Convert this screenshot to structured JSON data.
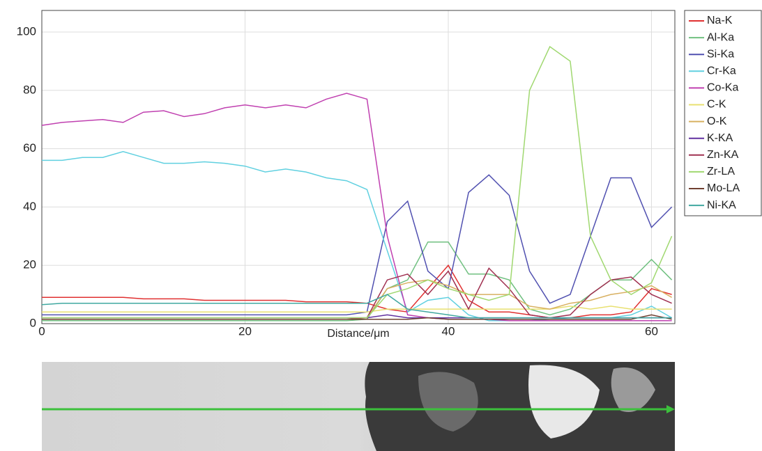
{
  "chart_data": {
    "type": "line",
    "x_label": "Distance/μm",
    "x": [
      0,
      2,
      4,
      6,
      8,
      10,
      12,
      14,
      16,
      18,
      20,
      22,
      24,
      26,
      28,
      30,
      32,
      34,
      36,
      38,
      40,
      42,
      44,
      46,
      48,
      50,
      52,
      54,
      56,
      58,
      60,
      62
    ],
    "xlim": [
      0,
      62.3
    ],
    "xticks": [
      0,
      20,
      40,
      60
    ],
    "ylim": [
      0,
      107.4
    ],
    "yticks": [
      0,
      20,
      40,
      60,
      80,
      100
    ],
    "grid": true,
    "legend": "outside right",
    "series": [
      {
        "name": "Na-K",
        "color": "#e03030",
        "values": [
          9,
          9,
          9,
          9,
          9,
          8.5,
          8.5,
          8.5,
          8,
          8,
          8,
          8,
          8,
          7.5,
          7.5,
          7.5,
          7,
          5,
          4,
          12,
          20,
          8,
          4,
          4,
          3,
          2,
          2,
          3,
          3,
          4,
          12,
          10
        ]
      },
      {
        "name": "Al-Ka",
        "color": "#70c080",
        "values": [
          1,
          1,
          1,
          1,
          1,
          1,
          1,
          1,
          1,
          1,
          1,
          1,
          1,
          1,
          1,
          1,
          1.5,
          12,
          15,
          28,
          28,
          17,
          17,
          15,
          5,
          3,
          5,
          10,
          15,
          15,
          22,
          15
        ]
      },
      {
        "name": "Si-Ka",
        "color": "#5050b0",
        "values": [
          3,
          3,
          3,
          3,
          3,
          3,
          3,
          3,
          3,
          3,
          3,
          3,
          3,
          3,
          3,
          3,
          4,
          35,
          42,
          18,
          12,
          45,
          51,
          44,
          18,
          7,
          10,
          30,
          50,
          50,
          33,
          40
        ]
      },
      {
        "name": "Cr-Ka",
        "color": "#60d0e0",
        "values": [
          56,
          56,
          57,
          57,
          59,
          57,
          55,
          55,
          55.5,
          55,
          54,
          52,
          53,
          52,
          50,
          49,
          46,
          25,
          4,
          8,
          9,
          3,
          1,
          1,
          1,
          1.5,
          2,
          2,
          2,
          3,
          6,
          2
        ]
      },
      {
        "name": "Co-Ka",
        "color": "#c040b0",
        "values": [
          68,
          69,
          69.5,
          70,
          69,
          72.5,
          73,
          71,
          72,
          74,
          75,
          74,
          75,
          74,
          77,
          79,
          77,
          30,
          3,
          2,
          1.5,
          1.5,
          1.5,
          1,
          1,
          1,
          1,
          1,
          1,
          1,
          1,
          1
        ]
      },
      {
        "name": "C-K",
        "color": "#e8e070",
        "values": [
          4,
          4,
          4,
          4,
          4,
          4,
          4,
          4,
          4,
          4,
          4,
          4,
          4,
          4,
          4,
          4,
          4,
          5,
          5,
          5,
          5,
          5,
          5,
          5,
          5,
          5,
          6,
          5,
          6,
          5,
          5,
          5
        ]
      },
      {
        "name": "O-K",
        "color": "#d8b060",
        "values": [
          2,
          2,
          2,
          2,
          2,
          2,
          2,
          2,
          2,
          2,
          2,
          2,
          2,
          2,
          2,
          2,
          2,
          12,
          14,
          15,
          13,
          10,
          10,
          10,
          6,
          5,
          7,
          8,
          10,
          11,
          13,
          9
        ]
      },
      {
        "name": "K-KA",
        "color": "#6030a0",
        "values": [
          2,
          2,
          2,
          2,
          2,
          2,
          2,
          2,
          2,
          2,
          2,
          2,
          2,
          2,
          2,
          2,
          2,
          3,
          2,
          2,
          2,
          2,
          2,
          2,
          2,
          2,
          2,
          2,
          2,
          2,
          2,
          2
        ]
      },
      {
        "name": "Zn-KA",
        "color": "#a03050",
        "values": [
          1.5,
          1.5,
          1.5,
          1.5,
          1.5,
          1.5,
          1.5,
          1.5,
          1.5,
          1.5,
          1.5,
          1.5,
          1.5,
          1.5,
          1.5,
          1.5,
          2,
          15,
          17,
          10,
          18,
          5,
          19,
          12,
          3,
          2,
          3,
          10,
          15,
          16,
          10,
          7
        ]
      },
      {
        "name": "Zr-LA",
        "color": "#a0d870",
        "values": [
          2,
          2,
          2,
          2,
          2,
          2,
          2,
          2,
          2,
          2,
          2,
          2,
          2,
          2,
          2,
          2,
          2,
          10,
          12,
          15,
          12,
          10,
          8,
          10,
          80,
          95,
          90,
          30,
          15,
          10,
          14,
          30
        ]
      },
      {
        "name": "Mo-LA",
        "color": "#704030",
        "values": [
          1.5,
          1.5,
          1.5,
          1.5,
          1.5,
          1.5,
          1.5,
          1.5,
          1.5,
          1.5,
          1.5,
          1.5,
          1.5,
          1.5,
          1.5,
          1.5,
          1.5,
          1.5,
          1.5,
          2,
          1.5,
          1.5,
          1.5,
          1.5,
          1.5,
          1.5,
          1.5,
          1.5,
          1.5,
          1.5,
          3,
          1.5
        ]
      },
      {
        "name": "Ni-KA",
        "color": "#40a8a0",
        "values": [
          6.5,
          7,
          7,
          7,
          7,
          7,
          7,
          7,
          7,
          7,
          7,
          7,
          7,
          7,
          7,
          7,
          7,
          10,
          5,
          4,
          3,
          2,
          2,
          2,
          2,
          2,
          2,
          2,
          2,
          2,
          2,
          2
        ]
      }
    ]
  }
}
